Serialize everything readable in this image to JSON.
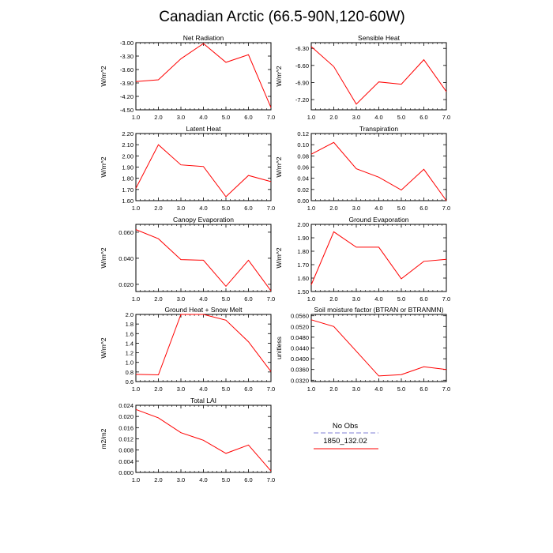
{
  "figure": {
    "title": "Canadian Arctic (66.5-90N,120-60W)"
  },
  "legend": {
    "entries": [
      "No Obs",
      "1850_132.02"
    ],
    "colors": [
      "#9999dd",
      "#ff0000"
    ]
  },
  "chart_data": [
    {
      "type": "line",
      "title": "Net Radiation",
      "ylabel": "W/m^2",
      "x": [
        1,
        2,
        3,
        4,
        5,
        6,
        7
      ],
      "xlim": [
        1,
        7
      ],
      "xticks": [
        "1.0",
        "2.0",
        "3.0",
        "4.0",
        "5.0",
        "6.0",
        "7.0"
      ],
      "ylim": [
        -4.5,
        -3.0
      ],
      "yticks": [
        "-4.50",
        "-4.20",
        "-3.90",
        "-3.60",
        "-3.30",
        "-3.00"
      ],
      "series": [
        {
          "name": "1850_132.02",
          "values": [
            -3.87,
            -3.83,
            -3.36,
            -3.02,
            -3.44,
            -3.27,
            -4.45
          ]
        }
      ]
    },
    {
      "type": "line",
      "title": "Sensible Heat",
      "ylabel": "W/m^2",
      "x": [
        1,
        2,
        3,
        4,
        5,
        6,
        7
      ],
      "xlim": [
        1,
        7
      ],
      "xticks": [
        "1.0",
        "2.0",
        "3.0",
        "4.0",
        "5.0",
        "6.0",
        "7.0"
      ],
      "ylim": [
        -7.38,
        -6.2
      ],
      "yticks": [
        "-7.20",
        "-6.90",
        "-6.60",
        "-6.30"
      ],
      "series": [
        {
          "name": "1850_132.02",
          "values": [
            -6.27,
            -6.62,
            -7.28,
            -6.89,
            -6.93,
            -6.5,
            -7.06
          ]
        }
      ]
    },
    {
      "type": "line",
      "title": "Latent Heat",
      "ylabel": "W/m^2",
      "x": [
        1,
        2,
        3,
        4,
        5,
        6,
        7
      ],
      "xlim": [
        1,
        7
      ],
      "xticks": [
        "1.0",
        "2.0",
        "3.0",
        "4.0",
        "5.0",
        "6.0",
        "7.0"
      ],
      "ylim": [
        1.6,
        2.2
      ],
      "yticks": [
        "1.60",
        "1.70",
        "1.80",
        "1.90",
        "2.00",
        "2.10",
        "2.20"
      ],
      "series": [
        {
          "name": "1850_132.02",
          "values": [
            1.71,
            2.1,
            1.92,
            1.905,
            1.635,
            1.825,
            1.77
          ]
        }
      ]
    },
    {
      "type": "line",
      "title": "Transpiration",
      "ylabel": "W/m^2",
      "x": [
        1,
        2,
        3,
        4,
        5,
        6,
        7
      ],
      "xlim": [
        1,
        7
      ],
      "xticks": [
        "1.0",
        "2.0",
        "3.0",
        "4.0",
        "5.0",
        "6.0",
        "7.0"
      ],
      "ylim": [
        0.0,
        0.12
      ],
      "yticks": [
        "0.00",
        "0.02",
        "0.04",
        "0.06",
        "0.08",
        "0.10",
        "0.12"
      ],
      "series": [
        {
          "name": "1850_132.02",
          "values": [
            0.083,
            0.104,
            0.057,
            0.042,
            0.019,
            0.056,
            0.0
          ]
        }
      ]
    },
    {
      "type": "line",
      "title": "Canopy Evaporation",
      "ylabel": "W/m^2",
      "x": [
        1,
        2,
        3,
        4,
        5,
        6,
        7
      ],
      "xlim": [
        1,
        7
      ],
      "xticks": [
        "1.0",
        "2.0",
        "3.0",
        "4.0",
        "5.0",
        "6.0",
        "7.0"
      ],
      "ylim": [
        0.0145,
        0.066
      ],
      "yticks": [
        "0.020",
        "0.040",
        "0.060"
      ],
      "series": [
        {
          "name": "1850_132.02",
          "values": [
            0.062,
            0.055,
            0.039,
            0.0385,
            0.0185,
            0.0385,
            0.015
          ]
        }
      ]
    },
    {
      "type": "line",
      "title": "Ground Evaporation",
      "ylabel": "W/m^2",
      "x": [
        1,
        2,
        3,
        4,
        5,
        6,
        7
      ],
      "xlim": [
        1,
        7
      ],
      "xticks": [
        "1.0",
        "2.0",
        "3.0",
        "4.0",
        "5.0",
        "6.0",
        "7.0"
      ],
      "ylim": [
        1.5,
        2.0
      ],
      "yticks": [
        "1.50",
        "1.60",
        "1.70",
        "1.80",
        "1.90",
        "2.00"
      ],
      "series": [
        {
          "name": "1850_132.02",
          "values": [
            1.55,
            1.945,
            1.83,
            1.83,
            1.595,
            1.725,
            1.74
          ]
        }
      ]
    },
    {
      "type": "line",
      "title": "Ground Heat + Snow Melt",
      "ylabel": "W/m^2",
      "x": [
        1,
        2,
        3,
        4,
        5,
        6,
        7
      ],
      "xlim": [
        1,
        7
      ],
      "xticks": [
        "1.0",
        "2.0",
        "3.0",
        "4.0",
        "5.0",
        "6.0",
        "7.0"
      ],
      "ylim": [
        0.6,
        2.0
      ],
      "yticks": [
        "0.6",
        "0.8",
        "1.0",
        "1.2",
        "1.4",
        "1.6",
        "1.8",
        "2.0"
      ],
      "series": [
        {
          "name": "1850_132.02",
          "values": [
            0.75,
            0.74,
            2.0,
            2.0,
            1.88,
            1.43,
            0.81
          ]
        }
      ]
    },
    {
      "type": "line",
      "title": "Soil moisture factor (BTRAN or BTRANMN)",
      "ylabel": "unitless",
      "x": [
        1,
        2,
        3,
        4,
        5,
        6,
        7
      ],
      "xlim": [
        1,
        7
      ],
      "xticks": [
        "1.0",
        "2.0",
        "3.0",
        "4.0",
        "5.0",
        "6.0",
        "7.0"
      ],
      "ylim": [
        0.0315,
        0.0565
      ],
      "yticks": [
        "0.0320",
        "0.0360",
        "0.0400",
        "0.0440",
        "0.0480",
        "0.0520",
        "0.0560"
      ],
      "series": [
        {
          "name": "1850_132.02",
          "values": [
            0.0545,
            0.052,
            0.0428,
            0.0336,
            0.0341,
            0.037,
            0.036
          ]
        }
      ]
    },
    {
      "type": "line",
      "title": "Total LAI",
      "ylabel": "m2/m2",
      "x": [
        1,
        2,
        3,
        4,
        5,
        6,
        7
      ],
      "xlim": [
        1,
        7
      ],
      "xticks": [
        "1.0",
        "2.0",
        "3.0",
        "4.0",
        "5.0",
        "6.0",
        "7.0"
      ],
      "ylim": [
        0.0,
        0.024
      ],
      "yticks": [
        "0.000",
        "0.004",
        "0.008",
        "0.012",
        "0.016",
        "0.020",
        "0.024"
      ],
      "series": [
        {
          "name": "1850_132.02",
          "values": [
            0.0225,
            0.0195,
            0.0142,
            0.0115,
            0.0068,
            0.0098,
            0.0005
          ]
        }
      ]
    }
  ]
}
